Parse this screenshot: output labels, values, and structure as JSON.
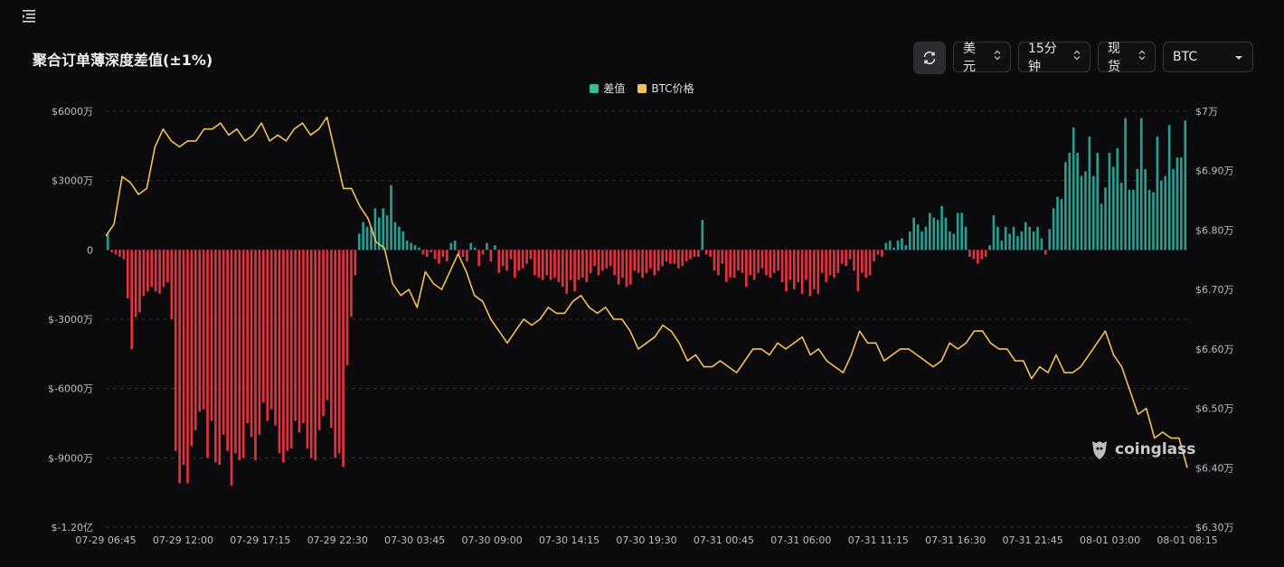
{
  "header": {
    "title": "聚合订单薄深度差值(±1%)"
  },
  "controls": {
    "unit": "美元",
    "interval": "15分钟",
    "market": "现货",
    "coin": "BTC"
  },
  "legend": [
    {
      "label": "差值",
      "color": "#2fc28f"
    },
    {
      "label": "BTC价格",
      "color": "#f3c25a"
    }
  ],
  "watermark": "coinglass",
  "colors": {
    "positive_bar": "#2a9d8f",
    "negative_bar": "#e0323f",
    "price_line": "#f3c25a",
    "grid": "#2a2c30"
  },
  "chart_data": {
    "type": "bar+line",
    "x_ticks": [
      "07-29 06:45",
      "07-29 12:00",
      "07-29 17:15",
      "07-29 22:30",
      "07-30 03:45",
      "07-30 09:00",
      "07-30 14:15",
      "07-30 19:30",
      "07-31 00:45",
      "07-31 06:00",
      "07-31 11:15",
      "07-31 16:30",
      "07-31 21:45",
      "08-01 03:00",
      "08-01 08:15"
    ],
    "y_left": {
      "ticks": [
        "$6000万",
        "$3000万",
        "0",
        "$-3000万",
        "$-6000万",
        "$-9000万",
        "$-1.20亿"
      ],
      "range": [
        -120000000,
        60000000
      ]
    },
    "y_right": {
      "ticks": [
        "$7万",
        "$6.90万",
        "$6.80万",
        "$6.70万",
        "$6.60万",
        "$6.50万",
        "$6.40万",
        "$6.30万"
      ],
      "range": [
        63000,
        70000
      ]
    },
    "series": [
      {
        "name": "差值",
        "kind": "bar",
        "values": [
          700,
          -100,
          -200,
          -300,
          -400,
          -2100,
          -4300,
          -2900,
          -2700,
          -2000,
          -1800,
          -1600,
          -1800,
          -1900,
          -1600,
          -1400,
          -3000,
          -8700,
          -10100,
          -9300,
          -10100,
          -8500,
          -7800,
          -7000,
          -6900,
          -9000,
          -7400,
          -9200,
          -9300,
          -8000,
          -8700,
          -10200,
          -8800,
          -9100,
          -9000,
          -7500,
          -8100,
          -9100,
          -8000,
          -6600,
          -7400,
          -6900,
          -7600,
          -8800,
          -9200,
          -8700,
          -8600,
          -7400,
          -7900,
          -7500,
          -8600,
          -9000,
          -9100,
          -7800,
          -7200,
          -6500,
          -7700,
          -9000,
          -8800,
          -9400,
          -5000,
          -2900,
          -1100,
          700,
          1200,
          1000,
          1000,
          1800,
          1400,
          1800,
          1500,
          2800,
          1200,
          1000,
          800,
          400,
          300,
          200,
          100,
          -200,
          -300,
          -100,
          -400,
          -600,
          -300,
          -500,
          300,
          400,
          -200,
          -300,
          -500,
          300,
          100,
          -700,
          -200,
          300,
          -500,
          200,
          -1000,
          -700,
          -900,
          -400,
          -1200,
          -900,
          -800,
          -600,
          -400,
          -1100,
          -1200,
          -1300,
          -1100,
          -1300,
          -1200,
          -1400,
          -1600,
          -1900,
          -1300,
          -1800,
          -1300,
          -1200,
          -1400,
          -1000,
          -700,
          -1100,
          -900,
          -800,
          -700,
          -1100,
          -1500,
          -1200,
          -1600,
          -1500,
          -900,
          -1000,
          -1200,
          -1000,
          -800,
          -1100,
          -900,
          -700,
          -500,
          -600,
          -600,
          -800,
          -700,
          -500,
          -400,
          -300,
          -300,
          1300,
          -200,
          -300,
          -900,
          -1100,
          -600,
          -1400,
          -1200,
          -1200,
          -900,
          -1000,
          -1600,
          -1100,
          -1300,
          -1000,
          -800,
          -1100,
          -1200,
          -1000,
          -900,
          -1400,
          -1800,
          -1300,
          -1700,
          -1400,
          -1900,
          -1300,
          -2000,
          -1700,
          -1900,
          -1000,
          -1400,
          -1100,
          -1200,
          -1000,
          -600,
          -700,
          -400,
          -900,
          -1800,
          -1000,
          -1200,
          -1100,
          -500,
          -200,
          -300,
          300,
          400,
          100,
          400,
          500,
          200,
          800,
          1400,
          1100,
          800,
          1000,
          1600,
          1400,
          1300,
          1900,
          1400,
          800,
          700,
          1600,
          1600,
          1000,
          -300,
          -400,
          -600,
          -400,
          -300,
          200,
          1500,
          1000,
          400,
          1000,
          700,
          1000,
          600,
          800,
          1200,
          1000,
          800,
          1000,
          500,
          -200,
          900,
          1800,
          2300,
          2200,
          3800,
          4200,
          5300,
          4200,
          3200,
          3400,
          4900,
          3200,
          4200,
          2000,
          2700,
          4200,
          3600,
          4400,
          2900,
          5700,
          2600,
          2600,
          3500,
          5700,
          3500,
          2600,
          2500,
          4900,
          3000,
          3200,
          5400,
          3500,
          4000,
          4000,
          5600
        ]
      },
      {
        "name": "BTC价格",
        "kind": "line",
        "values": [
          67900,
          68100,
          68900,
          68800,
          68600,
          68700,
          69400,
          69700,
          69500,
          69400,
          69500,
          69500,
          69700,
          69700,
          69800,
          69600,
          69700,
          69500,
          69600,
          69800,
          69500,
          69600,
          69500,
          69700,
          69800,
          69600,
          69700,
          69900,
          69300,
          68700,
          68700,
          68400,
          68200,
          67800,
          67700,
          67100,
          66900,
          67000,
          66700,
          67300,
          67100,
          67000,
          67300,
          67600,
          67300,
          66900,
          66800,
          66500,
          66300,
          66100,
          66300,
          66500,
          66400,
          66500,
          66700,
          66600,
          66600,
          66800,
          66900,
          66700,
          66600,
          66700,
          66500,
          66500,
          66300,
          66000,
          66100,
          66200,
          66400,
          66300,
          66100,
          65800,
          65900,
          65700,
          65700,
          65800,
          65700,
          65600,
          65800,
          66000,
          66000,
          65900,
          66100,
          66000,
          66100,
          66200,
          65900,
          66000,
          65800,
          65700,
          65600,
          65900,
          66300,
          66100,
          66100,
          65800,
          65900,
          66000,
          66000,
          65900,
          65800,
          65700,
          65800,
          66100,
          66000,
          66100,
          66300,
          66300,
          66100,
          66000,
          66000,
          65800,
          65800,
          65500,
          65700,
          65600,
          65900,
          65600,
          65600,
          65700,
          65900,
          66100,
          66300,
          65900,
          65700,
          65300,
          64900,
          65000,
          64500,
          64600,
          64500,
          64500,
          64000
        ]
      }
    ],
    "grid": true,
    "legend_position": "top-center"
  }
}
